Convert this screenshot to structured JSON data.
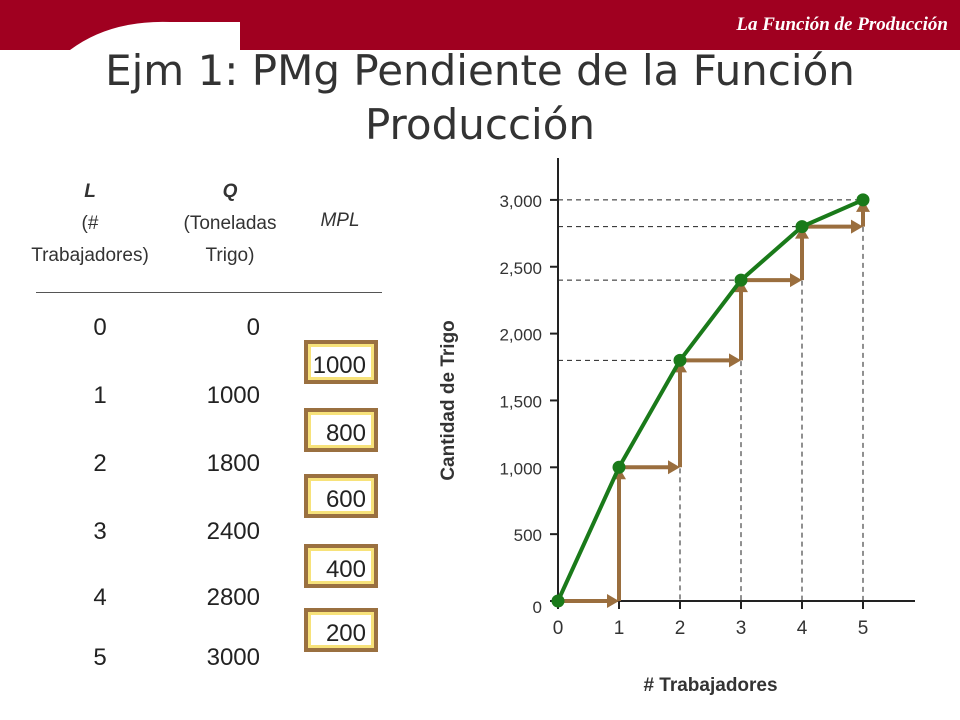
{
  "header": {
    "label": "La Función de Producción"
  },
  "title": "Ejm 1: PMg Pendiente de la Función Producción",
  "table": {
    "headers": {
      "l_letter": "L",
      "l_sub1": "(#",
      "l_sub2": "Trabajadores)",
      "q_letter": "Q",
      "q_sub1": "(Toneladas",
      "q_sub2": "Trigo)",
      "mpl": "MPL"
    },
    "rows": [
      {
        "l": "0",
        "q": "0"
      },
      {
        "l": "1",
        "q": "1000"
      },
      {
        "l": "2",
        "q": "1800"
      },
      {
        "l": "3",
        "q": "2400"
      },
      {
        "l": "4",
        "q": "2800"
      },
      {
        "l": "5",
        "q": "3000"
      }
    ],
    "mpl_values": [
      "1000",
      "800",
      "600",
      "400",
      "200"
    ]
  },
  "colors": {
    "banner": "#a00020",
    "curve": "#1a7a1a",
    "arrows": "#9a6e3e",
    "box_border": "#9a7040",
    "box_inner": "#f7e27a"
  },
  "chart_data": {
    "type": "line",
    "x": [
      0,
      1,
      2,
      3,
      4,
      5
    ],
    "y": [
      0,
      1000,
      1800,
      2400,
      2800,
      3000
    ],
    "xlabel": "# Trabajadores",
    "ylabel": "Cantidad de Trigo",
    "xlim": [
      0,
      5
    ],
    "ylim": [
      0,
      3000
    ],
    "x_ticks": [
      0,
      1,
      2,
      3,
      4,
      5
    ],
    "y_ticks": [
      0,
      500,
      1000,
      1500,
      2000,
      2500,
      3000
    ],
    "y_tick_labels": [
      "0",
      "500",
      "1,000",
      "1,500",
      "2,000",
      "2,500",
      "3,000"
    ],
    "grid": false,
    "guides": "dashed",
    "marginal_steps": true
  }
}
